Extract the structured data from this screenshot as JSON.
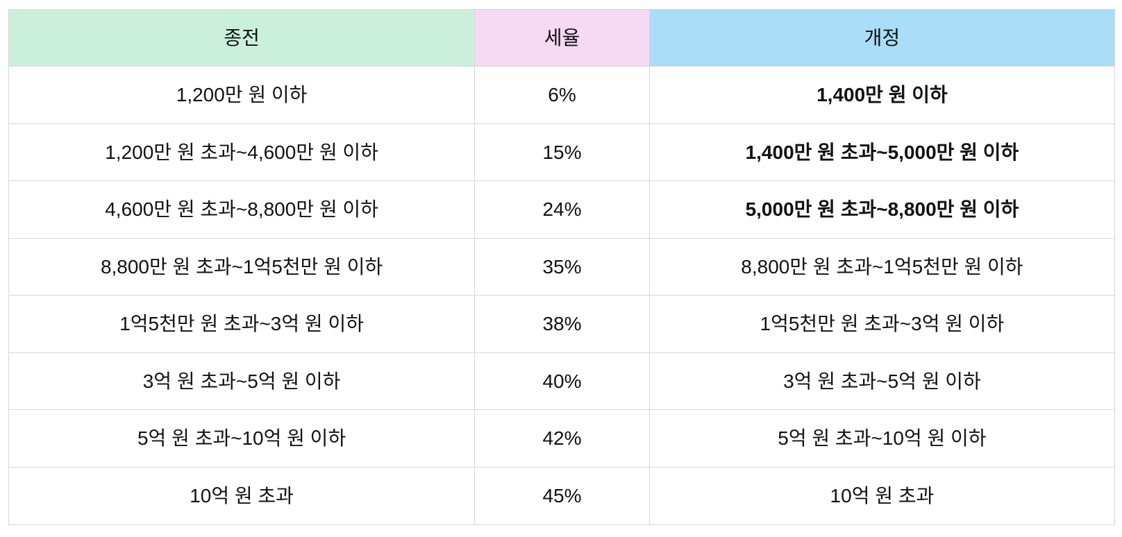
{
  "table": {
    "title_semantic": "korean-income-tax-bracket-revision-table",
    "border_color": "#d6d6d6",
    "text_color": "#111111",
    "headers": [
      {
        "label": "종전",
        "bg": "#caf0dc"
      },
      {
        "label": "세율",
        "bg": "#f6d9f2"
      },
      {
        "label": "개정",
        "bg": "#a9ddf8"
      }
    ],
    "rows": [
      {
        "old": "1,200만 원 이하",
        "rate": "6%",
        "new": "1,400만 원 이하",
        "new_bold": true
      },
      {
        "old": "1,200만 원 초과~4,600만 원 이하",
        "rate": "15%",
        "new": "1,400만 원 초과~5,000만 원 이하",
        "new_bold": true
      },
      {
        "old": "4,600만 원 초과~8,800만 원 이하",
        "rate": "24%",
        "new": "5,000만 원 초과~8,800만 원 이하",
        "new_bold": true
      },
      {
        "old": "8,800만 원 초과~1억5천만 원 이하",
        "rate": "35%",
        "new": "8,800만 원 초과~1억5천만 원 이하",
        "new_bold": false
      },
      {
        "old": "1억5천만 원 초과~3억 원 이하",
        "rate": "38%",
        "new": "1억5천만 원 초과~3억 원 이하",
        "new_bold": false
      },
      {
        "old": "3억 원 초과~5억 원 이하",
        "rate": "40%",
        "new": "3억 원 초과~5억 원 이하",
        "new_bold": false
      },
      {
        "old": "5억 원 초과~10억 원 이하",
        "rate": "42%",
        "new": "5억 원 초과~10억 원 이하",
        "new_bold": false
      },
      {
        "old": "10억 원 초과",
        "rate": "45%",
        "new": "10억 원 초과",
        "new_bold": false
      }
    ]
  }
}
